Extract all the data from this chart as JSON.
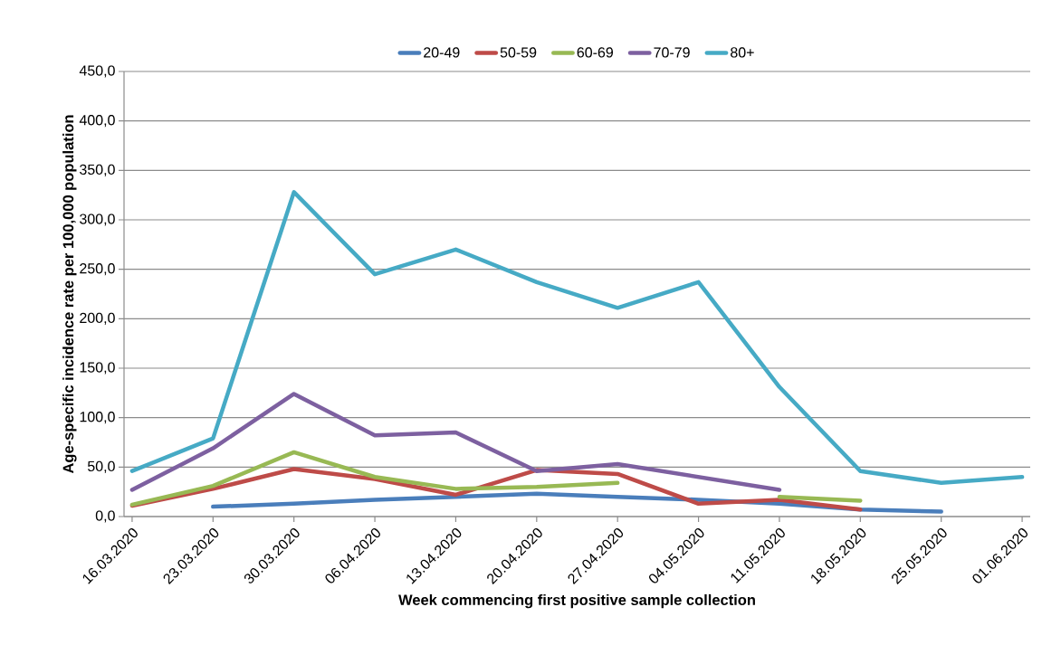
{
  "chart_data": {
    "type": "line",
    "xlabel": "Week commencing first positive sample collection",
    "ylabel": "Age-specific incidence rate per 100,000 population",
    "categories": [
      "16.03.2020",
      "23.03.2020",
      "30.03.2020",
      "06.04.2020",
      "13.04.2020",
      "20.04.2020",
      "27.04.2020",
      "04.05.2020",
      "11.05.2020",
      "18.05.2020",
      "25.05.2020",
      "01.06.2020"
    ],
    "series": [
      {
        "name": "20-49",
        "color": "#4a7ebb",
        "values": [
          null,
          10,
          13,
          17,
          20,
          23,
          20,
          17,
          13,
          7,
          5,
          null
        ]
      },
      {
        "name": "50-59",
        "color": "#be4b48",
        "values": [
          11,
          28,
          48,
          38,
          22,
          47,
          43,
          13,
          17,
          7,
          null,
          null
        ]
      },
      {
        "name": "60-69",
        "color": "#98b954",
        "values": [
          12,
          31,
          65,
          40,
          28,
          30,
          34,
          null,
          20,
          16,
          null,
          null
        ]
      },
      {
        "name": "70-79",
        "color": "#7d60a0",
        "values": [
          27,
          69,
          124,
          82,
          85,
          46,
          53,
          40,
          27,
          null,
          null,
          null
        ]
      },
      {
        "name": "80+",
        "color": "#46aac5",
        "values": [
          46,
          79,
          328,
          245,
          270,
          237,
          211,
          237,
          131,
          46,
          34,
          40
        ]
      }
    ],
    "ylim": [
      0,
      450
    ],
    "yticks": [
      {
        "value": 0,
        "label": "0,0"
      },
      {
        "value": 50,
        "label": "50,0"
      },
      {
        "value": 100,
        "label": "100,0"
      },
      {
        "value": 150,
        "label": "150,0"
      },
      {
        "value": 200,
        "label": "200,0"
      },
      {
        "value": 250,
        "label": "250,0"
      },
      {
        "value": 300,
        "label": "300,0"
      },
      {
        "value": 350,
        "label": "350,0"
      },
      {
        "value": 400,
        "label": "400,0"
      },
      {
        "value": 450,
        "label": "450,0"
      }
    ],
    "grid": "y",
    "legend": "top",
    "marker": "none",
    "line_style": "solid"
  }
}
